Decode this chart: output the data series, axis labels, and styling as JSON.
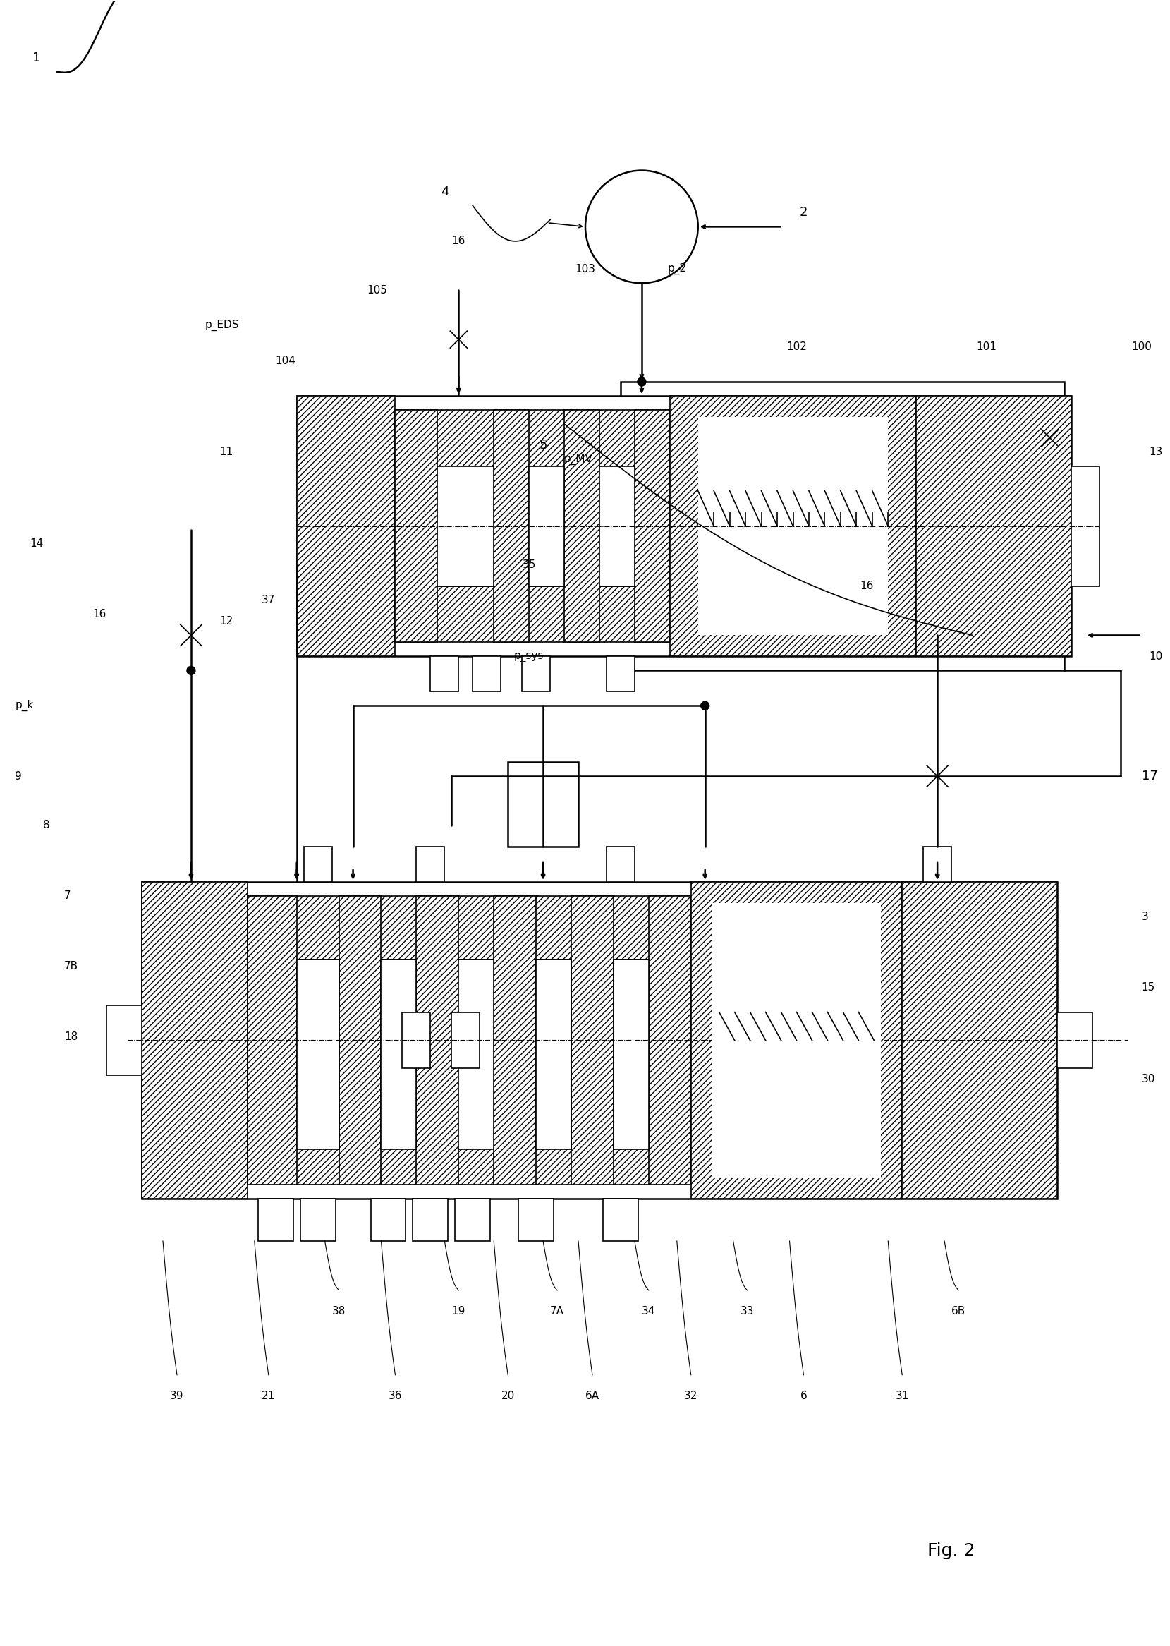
{
  "bg_color": "#ffffff",
  "labels": {
    "fig": "Fig. 2",
    "ref1": "1",
    "ref2": "2",
    "ref4": "4",
    "ref5": "5",
    "ref100": "100",
    "ref101": "101",
    "ref102": "102",
    "ref103": "103",
    "ref104": "104",
    "ref105": "105",
    "ref16a": "16",
    "ref16b": "16",
    "ref16c": "16",
    "ref11": "11",
    "ref12": "12",
    "ref13": "13",
    "ref10": "10",
    "ref3": "3",
    "ref6": "6",
    "ref6A": "6A",
    "ref6B": "6B",
    "ref7": "7",
    "ref7A": "7A",
    "ref7B": "7B",
    "ref8": "8",
    "ref9": "9",
    "ref14": "14",
    "ref15": "15",
    "ref17": "17",
    "ref18": "18",
    "ref19": "19",
    "ref20": "20",
    "ref21": "21",
    "ref30": "30",
    "ref31": "31",
    "ref32": "32",
    "ref33": "33",
    "ref34": "34",
    "ref35": "35",
    "ref36": "36",
    "ref37": "37",
    "ref38": "38",
    "ref39": "39",
    "p_EDS": "p_EDS",
    "p_2": "p_2",
    "p_k": "p_k",
    "p_MV": "p_MV",
    "p_sys": "p_sys"
  }
}
